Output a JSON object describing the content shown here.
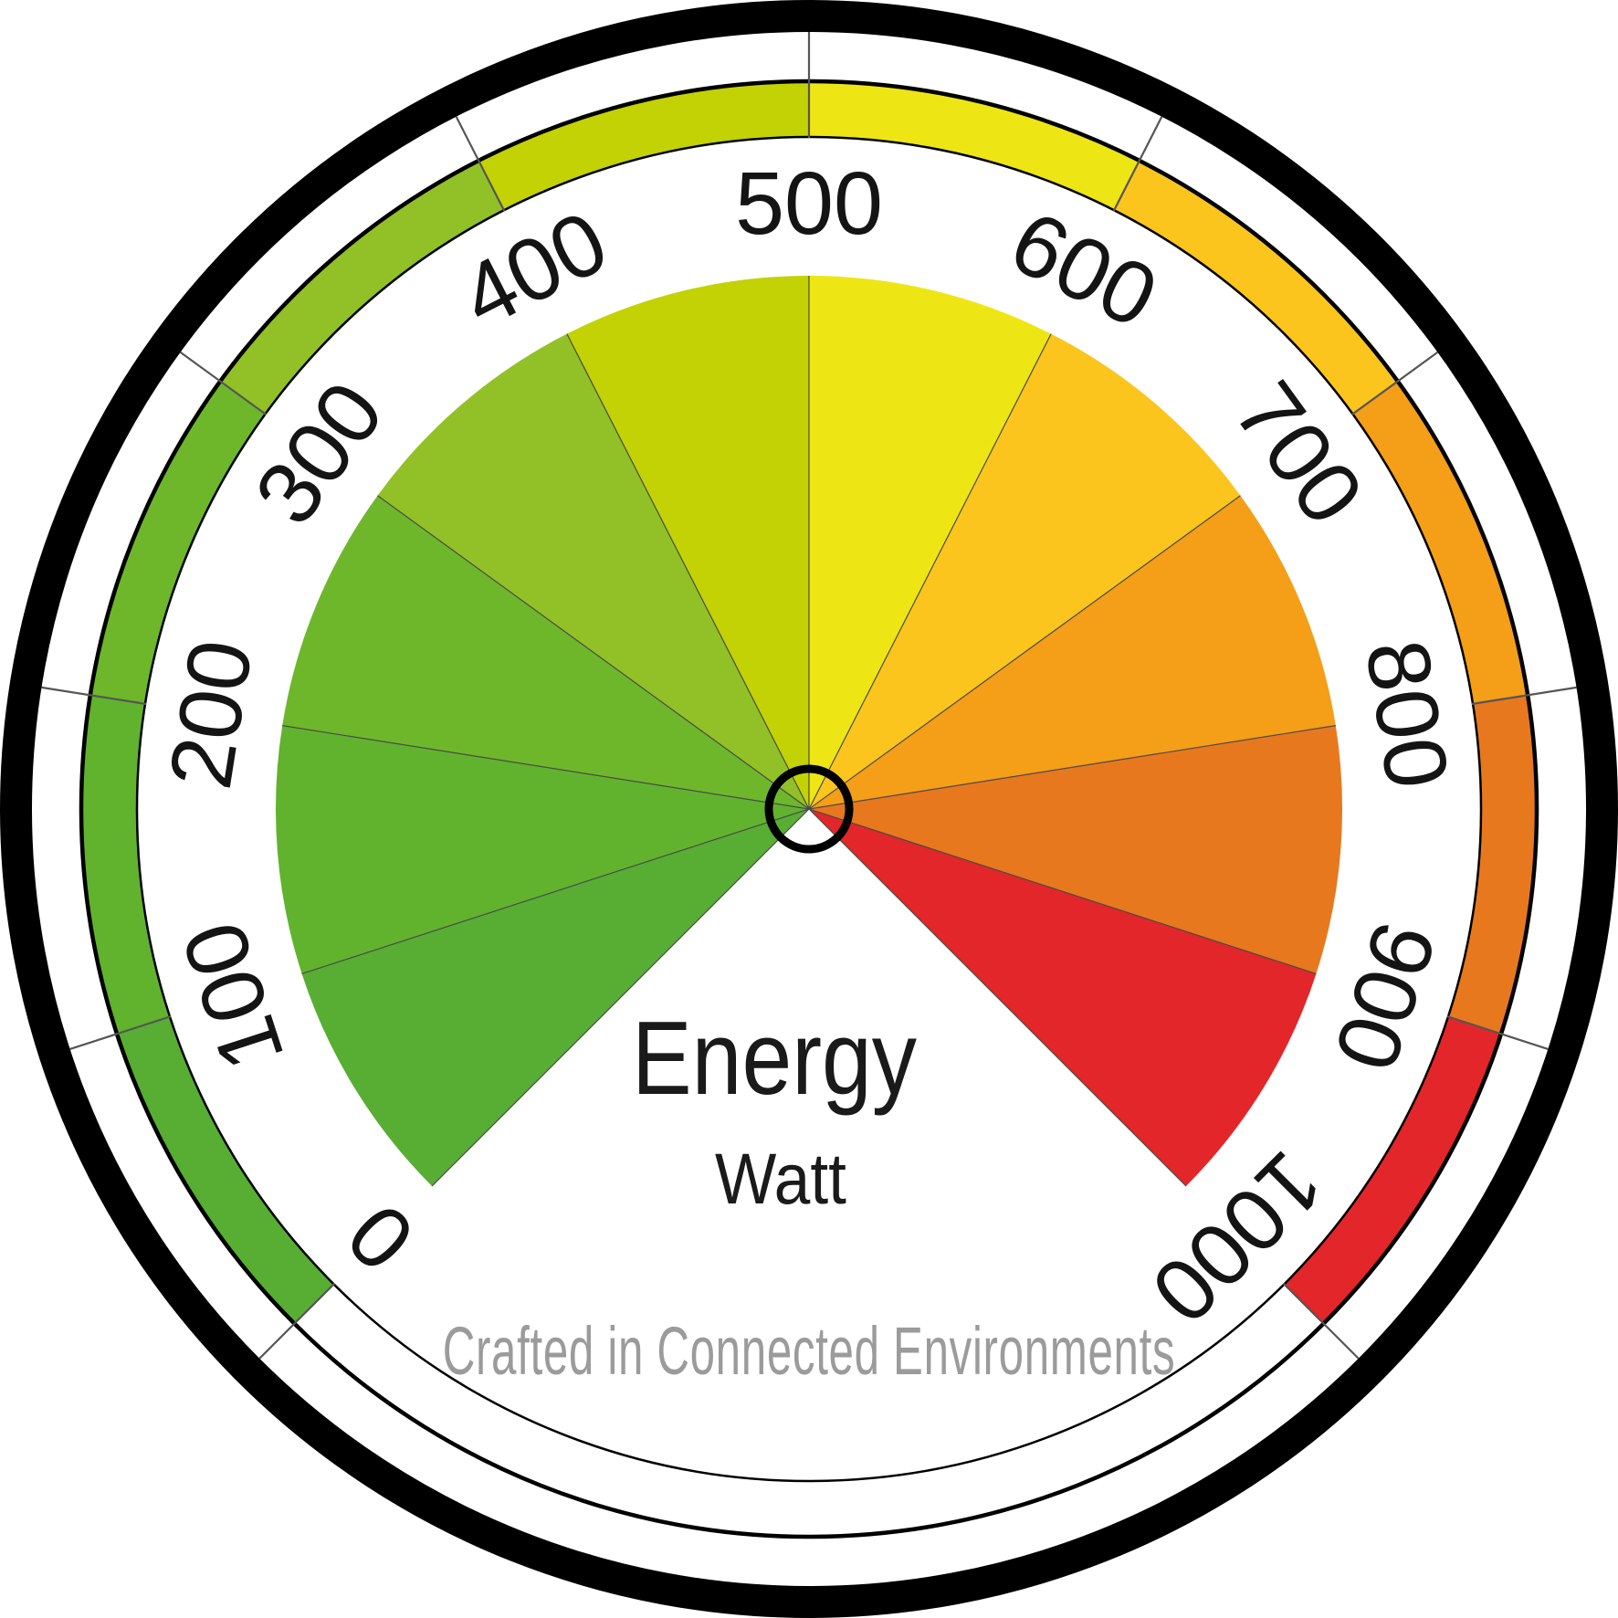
{
  "credit": {
    "text": "Crafted in Connected Environments",
    "color": "#9b9b9b"
  },
  "colors": {
    "background": "#ffffff",
    "ring": "#000000",
    "band_edge": "#000000",
    "tick": "#555555",
    "wedge_divider": "#4a4a4a",
    "hub_stroke": "#000000",
    "label": "#141414",
    "title": "#1a1a1a"
  },
  "chart_data": {
    "type": "gauge",
    "title": "Energy",
    "unit": "Watt",
    "min": 0,
    "max": 1000,
    "tick_step": 100,
    "tick_labels": [
      "0",
      "100",
      "200",
      "300",
      "400",
      "500",
      "600",
      "700",
      "800",
      "900",
      "1000"
    ],
    "start_angle_deg": -135,
    "end_angle_deg": 135,
    "direction": "clockwise",
    "legend": "none",
    "segments": [
      {
        "from": 0,
        "to": 100,
        "color": "#57ae33"
      },
      {
        "from": 100,
        "to": 200,
        "color": "#61b32e"
      },
      {
        "from": 200,
        "to": 300,
        "color": "#6eb72b"
      },
      {
        "from": 300,
        "to": 400,
        "color": "#91c126"
      },
      {
        "from": 400,
        "to": 500,
        "color": "#c2d204"
      },
      {
        "from": 500,
        "to": 600,
        "color": "#eee614"
      },
      {
        "from": 600,
        "to": 700,
        "color": "#fbc51d"
      },
      {
        "from": 700,
        "to": 800,
        "color": "#f59e17"
      },
      {
        "from": 800,
        "to": 900,
        "color": "#e8781e"
      },
      {
        "from": 900,
        "to": 1000,
        "color": "#e32629"
      }
    ]
  }
}
